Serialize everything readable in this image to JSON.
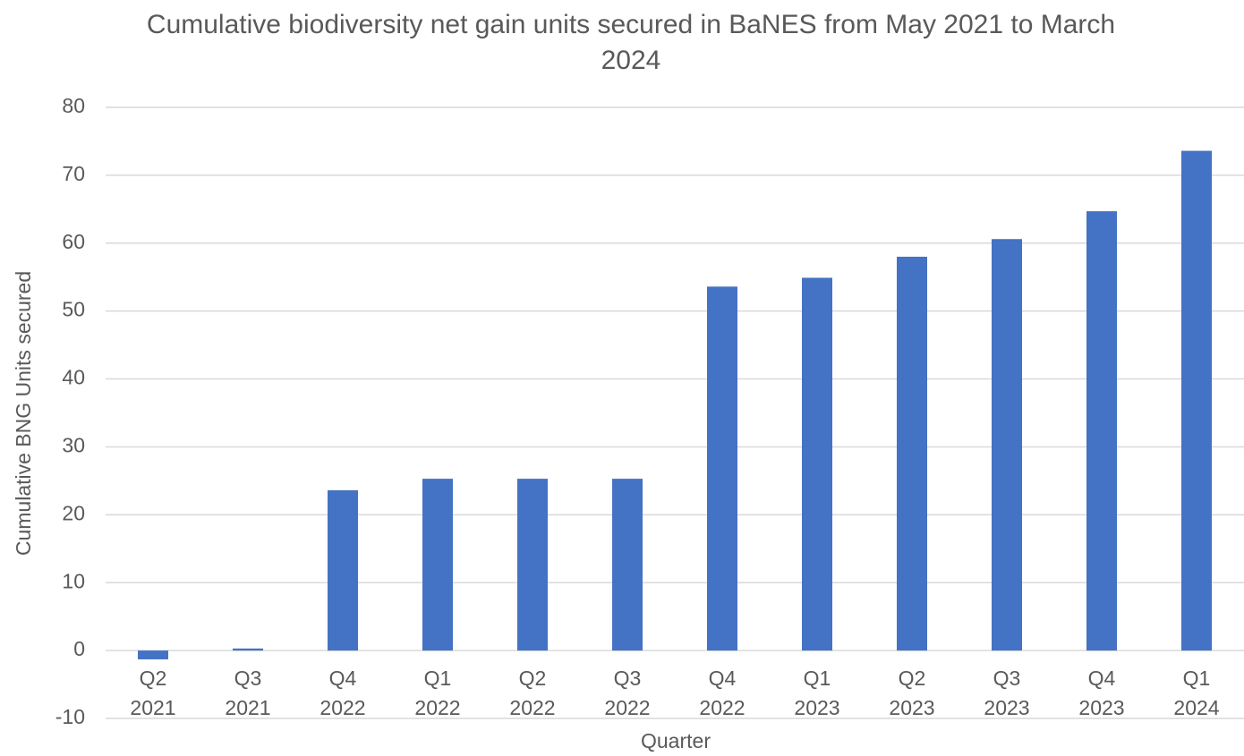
{
  "chart_data": {
    "type": "bar",
    "title": "Cumulative biodiversity net gain units secured in BaNES from May 2021 to March 2024",
    "x_label": "Quarter",
    "y_label": "Cumulative BNG Units secured",
    "categories": [
      [
        "Q2",
        "2021"
      ],
      [
        "Q3",
        "2021"
      ],
      [
        "Q4",
        "2022"
      ],
      [
        "Q1",
        "2022"
      ],
      [
        "Q2",
        "2022"
      ],
      [
        "Q3",
        "2022"
      ],
      [
        "Q4",
        "2022"
      ],
      [
        "Q1",
        "2023"
      ],
      [
        "Q2",
        "2023"
      ],
      [
        "Q3",
        "2023"
      ],
      [
        "Q4",
        "2023"
      ],
      [
        "Q1",
        "2024"
      ]
    ],
    "values": [
      -1.3,
      0.3,
      23.6,
      25.3,
      25.3,
      25.3,
      53.6,
      54.9,
      58.0,
      60.6,
      64.7,
      73.6
    ],
    "color": "#4472c4",
    "ylim": [
      -10,
      80
    ],
    "yticks": [
      -10,
      0,
      10,
      20,
      30,
      40,
      50,
      60,
      70,
      80
    ],
    "grid": true
  }
}
